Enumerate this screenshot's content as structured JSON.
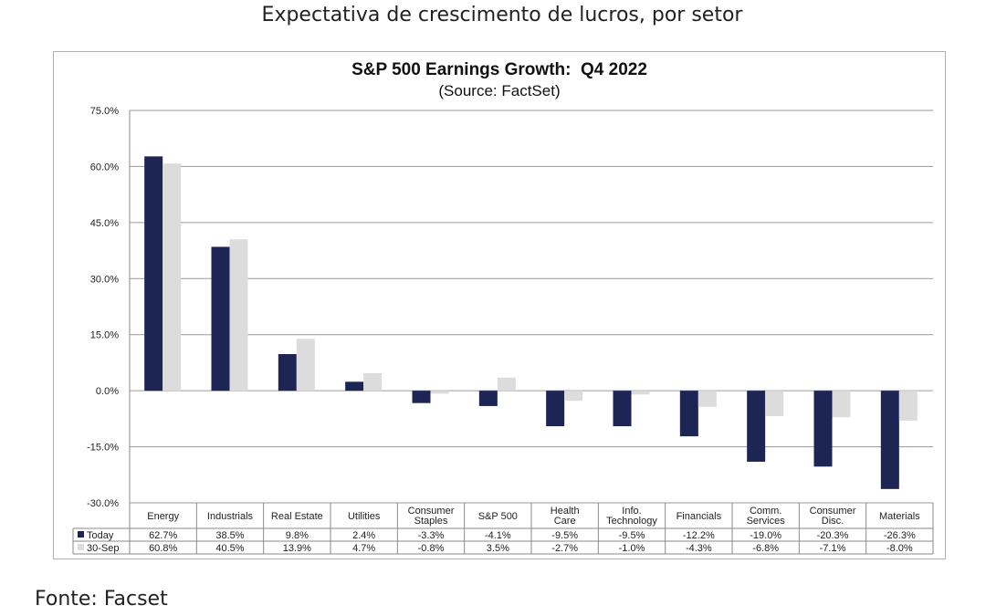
{
  "page": {
    "title": "Expectativa de crescimento de lucros, por setor",
    "source_label": "Fonte:",
    "source_value": "Facset"
  },
  "chart_data": {
    "type": "bar",
    "title": "S&P 500 Earnings Growth:  Q4 2022",
    "subtitle": "(Source: FactSet)",
    "ylim": [
      -30,
      75
    ],
    "yticks": [
      75,
      60,
      45,
      30,
      15,
      0,
      -15,
      -30
    ],
    "ytick_labels": [
      "75.0%",
      "60.0%",
      "45.0%",
      "30.0%",
      "15.0%",
      "0.0%",
      "-15.0%",
      "-30.0%"
    ],
    "grid": true,
    "categories": [
      [
        "Energy"
      ],
      [
        "Industrials"
      ],
      [
        "Real Estate"
      ],
      [
        "Utilities"
      ],
      [
        "Consumer",
        "Staples"
      ],
      [
        "S&P 500"
      ],
      [
        "Health",
        "Care"
      ],
      [
        "Info.",
        "Technology"
      ],
      [
        "Financials"
      ],
      [
        "Comm.",
        "Services"
      ],
      [
        "Consumer",
        "Disc."
      ],
      [
        "Materials"
      ]
    ],
    "series": [
      {
        "name": "Today",
        "color": "#1c2553",
        "values": [
          62.7,
          38.5,
          9.8,
          2.4,
          -3.3,
          -4.1,
          -9.5,
          -9.5,
          -12.2,
          -19.0,
          -20.3,
          -26.3
        ],
        "labels": [
          "62.7%",
          "38.5%",
          "9.8%",
          "2.4%",
          "-3.3%",
          "-4.1%",
          "-9.5%",
          "-9.5%",
          "-12.2%",
          "-19.0%",
          "-20.3%",
          "-26.3%"
        ]
      },
      {
        "name": "30-Sep",
        "color": "#dcdcdc",
        "values": [
          60.8,
          40.5,
          13.9,
          4.7,
          -0.8,
          3.5,
          -2.7,
          -1.0,
          -4.3,
          -6.8,
          -7.1,
          -8.0
        ],
        "labels": [
          "60.8%",
          "40.5%",
          "13.9%",
          "4.7%",
          "-0.8%",
          "3.5%",
          "-2.7%",
          "-1.0%",
          "-4.3%",
          "-6.8%",
          "-7.1%",
          "-8.0%"
        ]
      }
    ]
  }
}
